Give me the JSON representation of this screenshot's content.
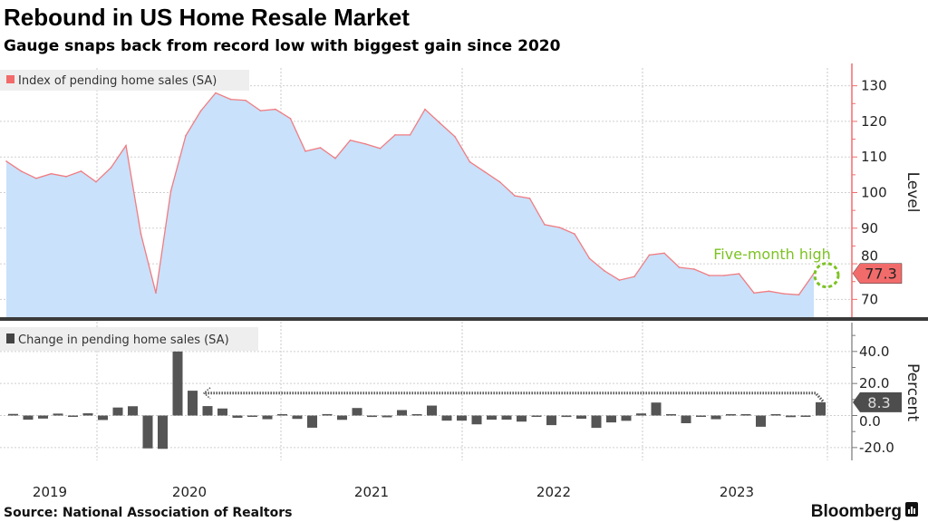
{
  "chart_data": [
    {
      "type": "area",
      "title": "Rebound in US Home Resale Market",
      "subtitle": "Gauge snaps back from record low with biggest gain since 2020",
      "legend": "Index of pending home sales (SA)",
      "ylabel": "Level",
      "ylim": [
        65,
        135
      ],
      "yticks": [
        "70",
        "80",
        "90",
        "100",
        "110",
        "120",
        "130"
      ],
      "start_month": "2019-06",
      "end_month": "2023-12",
      "values": [
        108.8,
        106.0,
        104.0,
        105.3,
        104.5,
        106.0,
        103.0,
        107.0,
        113.2,
        88.4,
        71.8,
        100.4,
        116.0,
        122.9,
        128.0,
        126.2,
        125.9,
        123.0,
        123.4,
        120.8,
        111.6,
        112.6,
        109.6,
        114.7,
        113.7,
        112.4,
        116.2,
        116.2,
        123.4,
        119.5,
        115.7,
        108.6,
        105.8,
        103.0,
        99.1,
        98.4,
        91.0,
        90.2,
        88.4,
        81.5,
        78.0,
        75.4,
        76.4,
        82.5,
        83.0,
        79.0,
        78.5,
        76.7,
        76.7,
        77.2,
        71.8,
        72.3,
        71.6,
        71.3,
        77.3
      ],
      "last_value_label": "77.3",
      "annotation": "Five-month high",
      "colors": {
        "line": "#f07c82",
        "fill": "#c9e1fa",
        "badge": "#f26b6b",
        "annotation": "#7dc224"
      }
    },
    {
      "type": "bar",
      "legend": "Change in pending home sales (SA)",
      "ylabel": "Percent",
      "ylim": [
        -28,
        58
      ],
      "yticks": [
        "40.0",
        "20.0",
        "0.0",
        "-20.0"
      ],
      "start_month": "2019-06",
      "end_month": "2023-12",
      "values": [
        1.0,
        -2.6,
        -1.9,
        1.2,
        -0.8,
        1.4,
        -2.8,
        5.0,
        5.8,
        -20.5,
        -20.8,
        40.0,
        15.5,
        5.9,
        4.4,
        -1.4,
        -0.2,
        -2.3,
        0.3,
        -2.1,
        -7.6,
        0.9,
        -2.7,
        4.7,
        -0.9,
        -1.1,
        3.4,
        0.0,
        6.2,
        -3.2,
        -3.2,
        -5.5,
        -2.6,
        -2.6,
        -3.8,
        -0.7,
        -6.0,
        -0.9,
        -2.0,
        -7.7,
        -4.3,
        -3.3,
        1.3,
        8.1,
        0.6,
        -4.8,
        -0.6,
        -2.3,
        0.0,
        0.7,
        -7.0,
        0.7,
        -1.0,
        -0.4,
        8.3
      ],
      "last_value_label": "8.3",
      "colors": {
        "bar": "#555555",
        "badge": "#4d4d4d"
      }
    }
  ],
  "x_axis": {
    "labels": [
      "2019",
      "2020",
      "2021",
      "2022",
      "2023"
    ]
  },
  "footer": {
    "source": "Source: National Association of Realtors",
    "brand": "Bloomberg"
  }
}
